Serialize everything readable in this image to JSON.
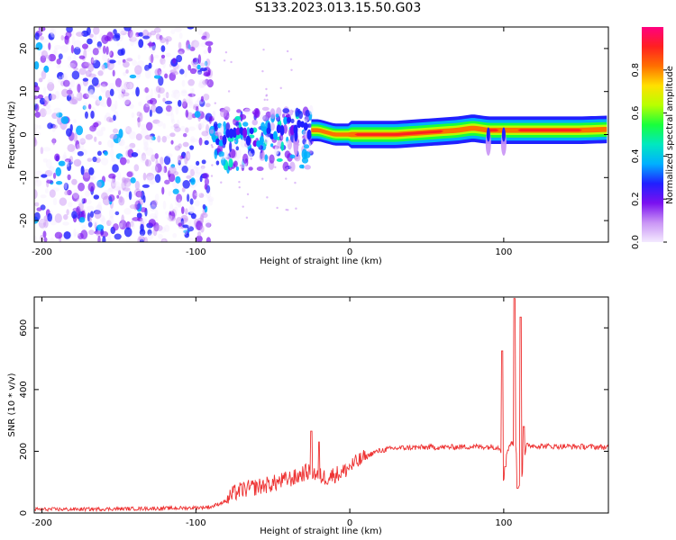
{
  "title": "S133.2023.013.15.50.G03",
  "chart_data": [
    {
      "type": "heatmap",
      "xlabel": "Height of straight line (km)",
      "ylabel": "Frequency (Hz)",
      "xlim": [
        -205,
        168
      ],
      "ylim": [
        -25,
        25
      ],
      "xticks": [
        -200,
        -100,
        0,
        100
      ],
      "yticks": [
        -20,
        -10,
        0,
        10,
        20
      ],
      "colorbar": {
        "label": "Normalized spectral amplitude",
        "range": [
          0,
          1
        ],
        "ticks": [
          "0.0",
          "0.2",
          "0.4",
          "0.6",
          "0.8"
        ],
        "colors": [
          "#f4eaff",
          "#c994f5",
          "#7a10f0",
          "#2020ff",
          "#00b0ff",
          "#00e8c0",
          "#18ff3c",
          "#b8ff00",
          "#ffe000",
          "#ff7000",
          "#ff2020",
          "#ff0080"
        ]
      },
      "features": {
        "noise_region_x": [
          -205,
          -90
        ],
        "transition_region_x": [
          -90,
          -25
        ],
        "ridge": [
          [
            -90,
            -2.5
          ],
          [
            -80,
            -1
          ],
          [
            -70,
            0
          ],
          [
            -60,
            -1
          ],
          [
            -50,
            0
          ],
          [
            -40,
            3
          ],
          [
            -30,
            1
          ],
          [
            -20,
            1
          ],
          [
            -10,
            0
          ],
          [
            0,
            0
          ],
          [
            10,
            0
          ],
          [
            30,
            0
          ],
          [
            50,
            0.5
          ],
          [
            70,
            1
          ],
          [
            80,
            1.5
          ],
          [
            90,
            1
          ],
          [
            100,
            1
          ],
          [
            110,
            1
          ],
          [
            130,
            1
          ],
          [
            150,
            1
          ],
          [
            168,
            1.2
          ]
        ],
        "spikes_x": [
          -35,
          90,
          100
        ]
      }
    },
    {
      "type": "line",
      "xlabel": "Height of straight line (km)",
      "ylabel": "SNR (10 * v/v)",
      "xlim": [
        -205,
        168
      ],
      "ylim": [
        0,
        700
      ],
      "xticks": [
        -200,
        -100,
        0,
        100
      ],
      "yticks": [
        0,
        200,
        400,
        600
      ],
      "color": "#ee3333",
      "series": [
        {
          "x": [
            -205,
            -180,
            -160,
            -140,
            -120,
            -100,
            -90,
            -80,
            -75,
            -70,
            -60,
            -50,
            -40,
            -35,
            -30,
            -25,
            -20,
            -15,
            -10,
            -5,
            0,
            5,
            10,
            15,
            20,
            25,
            30,
            40,
            50,
            60,
            70,
            80,
            90,
            95,
            98,
            100,
            102,
            105,
            108,
            110,
            112,
            115,
            120,
            130,
            140,
            150,
            160,
            168
          ],
          "y": [
            12,
            12,
            13,
            14,
            15,
            17,
            20,
            40,
            65,
            75,
            85,
            95,
            110,
            115,
            130,
            135,
            120,
            115,
            125,
            130,
            150,
            165,
            180,
            195,
            202,
            207,
            210,
            212,
            213,
            213,
            214,
            215,
            215,
            214,
            210,
            100,
            200,
            230,
            210,
            80,
            130,
            220,
            218,
            216,
            216,
            215,
            214,
            213
          ]
        }
      ],
      "spikes": [
        {
          "x": 99,
          "y": 525
        },
        {
          "x": 101,
          "y": 150
        },
        {
          "x": 107,
          "y": 695
        },
        {
          "x": 109,
          "y": 80
        },
        {
          "x": 111,
          "y": 635
        },
        {
          "x": 113,
          "y": 280
        },
        {
          "x": -25,
          "y": 265
        },
        {
          "x": -20,
          "y": 230
        }
      ]
    }
  ]
}
